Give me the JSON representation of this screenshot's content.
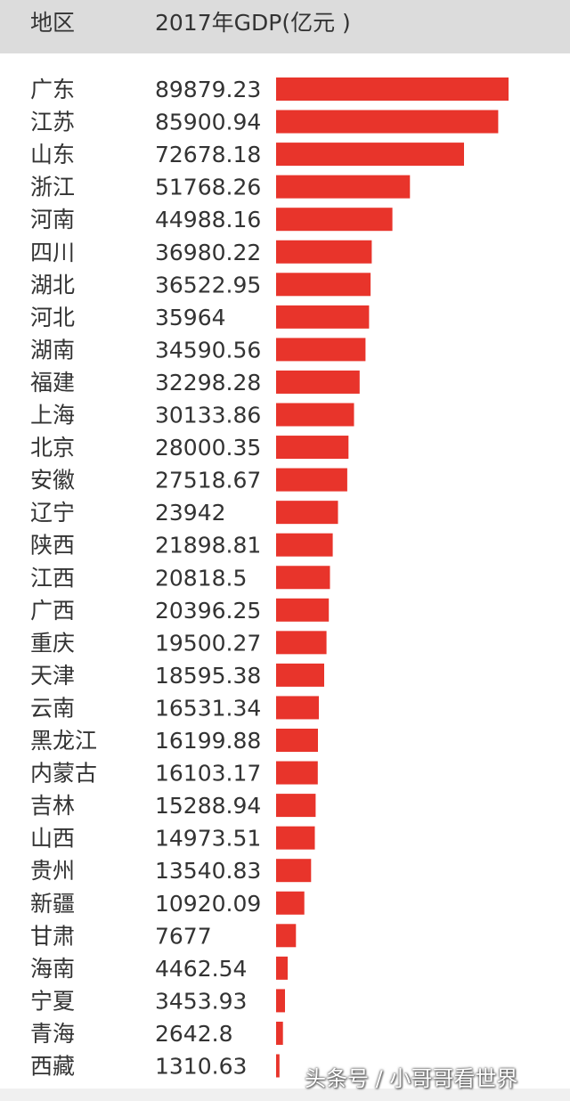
{
  "header": {
    "region_label": "地区",
    "gdp_label": "2017年GDP(亿元 )"
  },
  "colors": {
    "bar": "#e8342b",
    "header_bg": "#dcdcdc",
    "text": "#333333"
  },
  "watermark": "头条号 / 小哥哥看世界",
  "chart_data": {
    "type": "bar",
    "orientation": "horizontal",
    "xlabel": "地区",
    "ylabel": "2017年GDP(亿元 )",
    "xlim": [
      0,
      89879.23
    ],
    "categories": [
      "广东",
      "江苏",
      "山东",
      "浙江",
      "河南",
      "四川",
      "湖北",
      "河北",
      "湖南",
      "福建",
      "上海",
      "北京",
      "安徽",
      "辽宁",
      "陕西",
      "江西",
      "广西",
      "重庆",
      "天津",
      "云南",
      "黑龙江",
      "内蒙古",
      "吉林",
      "山西",
      "贵州",
      "新疆",
      "甘肃",
      "海南",
      "宁夏",
      "青海",
      "西藏"
    ],
    "value_labels": [
      "89879.23",
      "85900.94",
      "72678.18",
      "51768.26",
      "44988.16",
      "36980.22",
      "36522.95",
      "35964",
      "34590.56",
      "32298.28",
      "30133.86",
      "28000.35",
      "27518.67",
      "23942",
      "21898.81",
      "20818.5",
      "20396.25",
      "19500.27",
      "18595.38",
      "16531.34",
      "16199.88",
      "16103.17",
      "15288.94",
      "14973.51",
      "13540.83",
      "10920.09",
      "7677",
      "4462.54",
      "3453.93",
      "2642.8",
      "1310.63"
    ],
    "values": [
      89879.23,
      85900.94,
      72678.18,
      51768.26,
      44988.16,
      36980.22,
      36522.95,
      35964,
      34590.56,
      32298.28,
      30133.86,
      28000.35,
      27518.67,
      23942,
      21898.81,
      20818.5,
      20396.25,
      19500.27,
      18595.38,
      16531.34,
      16199.88,
      16103.17,
      15288.94,
      14973.51,
      13540.83,
      10920.09,
      7677,
      4462.54,
      3453.93,
      2642.8,
      1310.63
    ]
  }
}
